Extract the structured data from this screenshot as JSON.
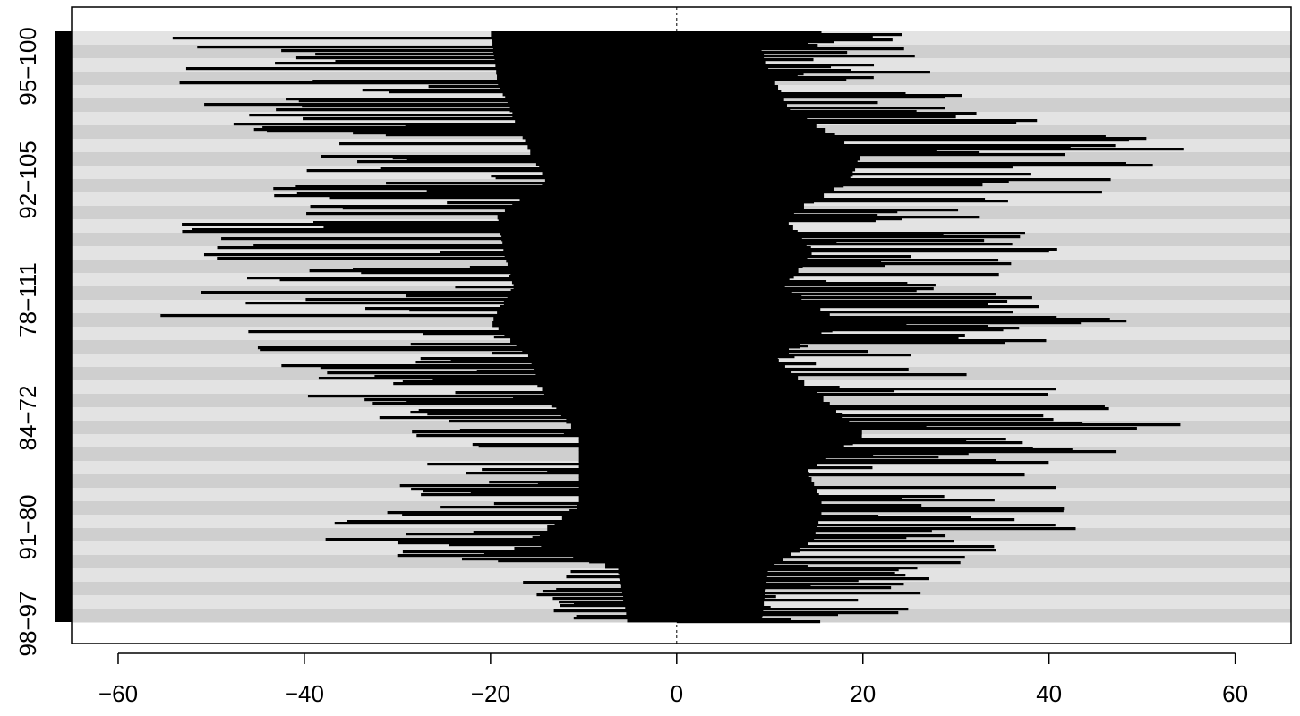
{
  "chart_data": {
    "type": "bar",
    "orientation": "horizontal",
    "title": "",
    "xlabel": "",
    "ylabel": "",
    "xlim": [
      -65,
      66
    ],
    "x_ticks": [
      -60,
      -40,
      -20,
      0,
      20,
      40,
      60
    ],
    "x_tick_labels": [
      "−60",
      "−40",
      "−20",
      "0",
      "20",
      "40",
      "60"
    ],
    "y_tick_labels": [
      "98−97",
      "91−80",
      "84−72",
      "78−111",
      "92−105",
      "95−100"
    ],
    "reference_line": 0,
    "grid": false,
    "legend": "none",
    "colors": {
      "bars": "#000000",
      "band_light": "#e3e3e3",
      "band_dark": "#cfcfcf",
      "sidebar": "#000000",
      "reference_line": "#000000",
      "axis": "#000000",
      "background": "#ffffff"
    },
    "profile": [
      {
        "pos": 0.0,
        "low": -57,
        "high": 24
      },
      {
        "pos": 0.08,
        "low": -55,
        "high": 30
      },
      {
        "pos": 0.13,
        "low": -51,
        "high": 35
      },
      {
        "pos": 0.2,
        "low": -45,
        "high": 57
      },
      {
        "pos": 0.25,
        "low": -40,
        "high": 53
      },
      {
        "pos": 0.31,
        "low": -55,
        "high": 33
      },
      {
        "pos": 0.37,
        "low": -53,
        "high": 42
      },
      {
        "pos": 0.43,
        "low": -50,
        "high": 33
      },
      {
        "pos": 0.49,
        "low": -57,
        "high": 52
      },
      {
        "pos": 0.55,
        "low": -45,
        "high": 30
      },
      {
        "pos": 0.62,
        "low": -40,
        "high": 45
      },
      {
        "pos": 0.68,
        "low": -30,
        "high": 58
      },
      {
        "pos": 0.74,
        "low": -30,
        "high": 40
      },
      {
        "pos": 0.8,
        "low": -30,
        "high": 45
      },
      {
        "pos": 0.86,
        "low": -45,
        "high": 42
      },
      {
        "pos": 0.91,
        "low": -18,
        "high": 28
      },
      {
        "pos": 1.0,
        "low": -15,
        "high": 26
      }
    ]
  }
}
